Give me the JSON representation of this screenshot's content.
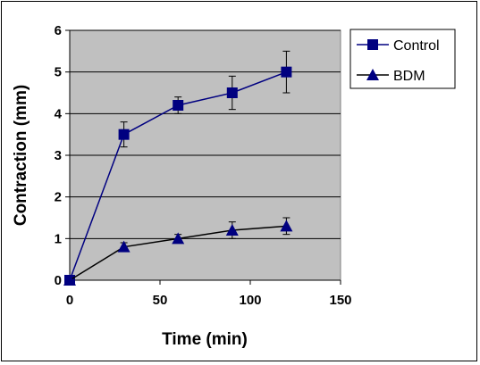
{
  "chart_data": {
    "type": "line",
    "title": "",
    "xlabel": "Time (min)",
    "ylabel": "Contraction (mm)",
    "xlim": [
      0,
      150
    ],
    "ylim": [
      0,
      6
    ],
    "x_ticks": [
      "0",
      "50",
      "100",
      "150"
    ],
    "y_ticks": [
      "0",
      "1",
      "2",
      "3",
      "4",
      "5",
      "6"
    ],
    "grid": "horizontal",
    "plot_background": "#C0C0C0",
    "legend_position": "top-right",
    "series": [
      {
        "name": "Control",
        "marker": "square",
        "color": "#000080",
        "x": [
          0,
          30,
          60,
          90,
          120
        ],
        "y": [
          0,
          3.5,
          4.2,
          4.5,
          5.0
        ],
        "error": [
          0,
          0.3,
          0.2,
          0.4,
          0.5
        ]
      },
      {
        "name": "BDM",
        "marker": "triangle",
        "color": "#000080",
        "x": [
          0,
          30,
          60,
          90,
          120
        ],
        "y": [
          0,
          0.8,
          1.0,
          1.2,
          1.3
        ],
        "error": [
          0,
          0.1,
          0.1,
          0.2,
          0.2
        ]
      }
    ]
  }
}
